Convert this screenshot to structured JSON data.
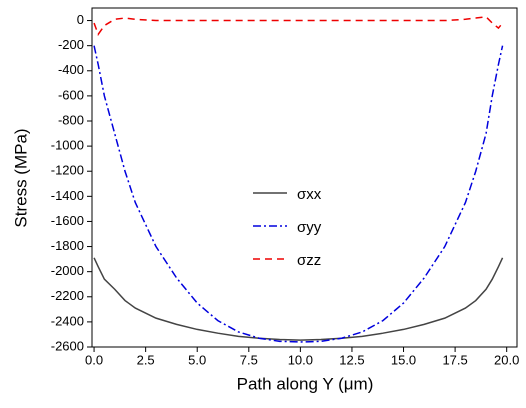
{
  "chart_data": {
    "type": "line",
    "x_label": "Path along Y (μm)",
    "y_label": "Stress (MPa)",
    "x": [
      0,
      0.2,
      0.5,
      1,
      1.5,
      2,
      3,
      4,
      5,
      6,
      7,
      8,
      9,
      10,
      11,
      12,
      13,
      14,
      15,
      16,
      17,
      18,
      18.5,
      19,
      19.3,
      19.6,
      19.8
    ],
    "series": [
      {
        "name": "σxx",
        "color": "#444444",
        "dash": "solid",
        "values": [
          -1890,
          -1960,
          -2060,
          -2140,
          -2230,
          -2290,
          -2370,
          -2420,
          -2460,
          -2490,
          -2515,
          -2530,
          -2540,
          -2545,
          -2540,
          -2530,
          -2515,
          -2490,
          -2460,
          -2420,
          -2370,
          -2290,
          -2230,
          -2140,
          -2060,
          -1960,
          -1890
        ]
      },
      {
        "name": "σyy",
        "color": "#0000dd",
        "dash": "dashdot",
        "values": [
          -200,
          -350,
          -600,
          -900,
          -1200,
          -1450,
          -1800,
          -2050,
          -2250,
          -2390,
          -2480,
          -2530,
          -2555,
          -2560,
          -2555,
          -2530,
          -2480,
          -2390,
          -2250,
          -2050,
          -1800,
          -1450,
          -1200,
          -900,
          -600,
          -350,
          -200
        ]
      },
      {
        "name": "σzz",
        "color": "#ee0000",
        "dash": "dash",
        "values": [
          -20,
          -110,
          -40,
          10,
          20,
          10,
          0,
          0,
          0,
          0,
          0,
          0,
          0,
          0,
          0,
          0,
          0,
          0,
          0,
          0,
          0,
          10,
          20,
          30,
          -20,
          -60,
          -20
        ]
      }
    ],
    "xlim": [
      -0.1,
      20.5
    ],
    "ylim": [
      -2600,
      100
    ],
    "xticks": [
      {
        "value": 0,
        "label": "0.0"
      },
      {
        "value": 2.5,
        "label": "2.5"
      },
      {
        "value": 5,
        "label": "5.0"
      },
      {
        "value": 7.5,
        "label": "7.5"
      },
      {
        "value": 10,
        "label": "10.0"
      },
      {
        "value": 12.5,
        "label": "12.5"
      },
      {
        "value": 15,
        "label": "15.0"
      },
      {
        "value": 17.5,
        "label": "17.5"
      },
      {
        "value": 20,
        "label": "20.0"
      }
    ],
    "yticks": [
      0,
      -200,
      -400,
      -600,
      -800,
      -1000,
      -1200,
      -1400,
      -1600,
      -1800,
      -2000,
      -2200,
      -2400,
      -2600
    ],
    "grid": false
  }
}
